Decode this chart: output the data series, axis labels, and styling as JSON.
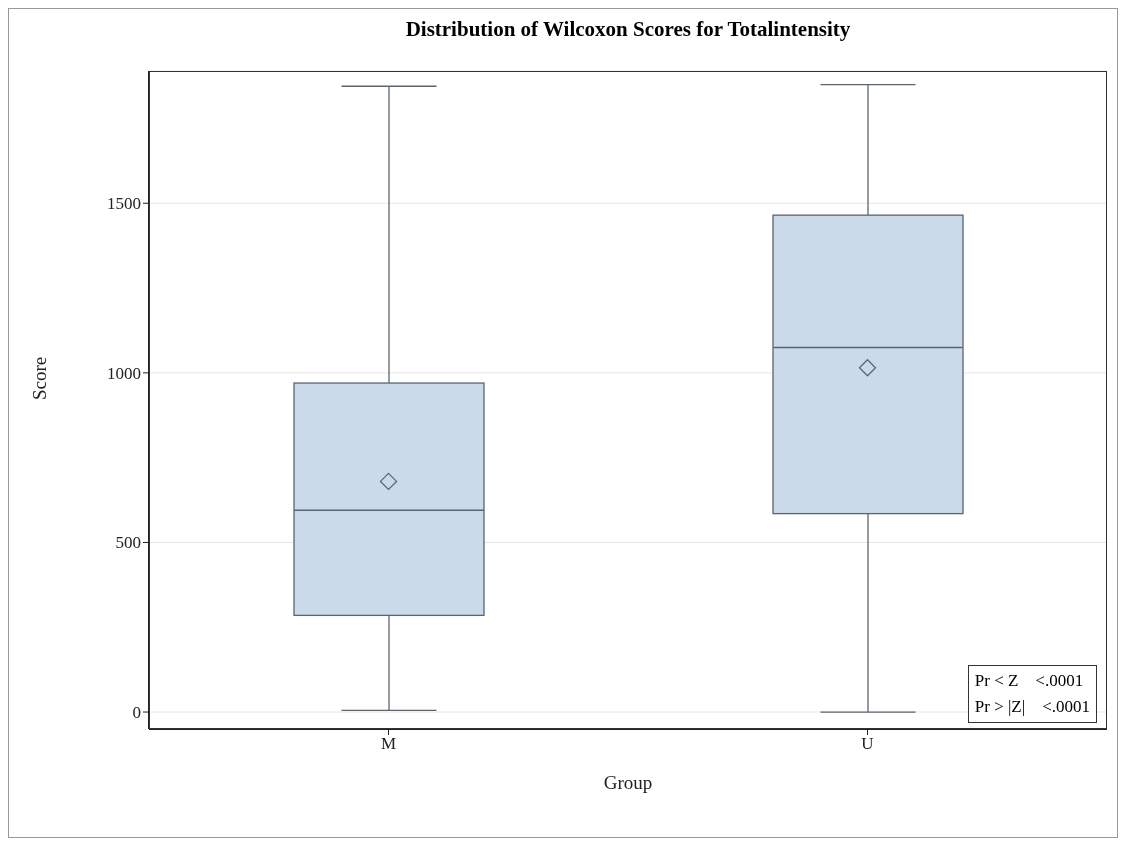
{
  "chart_data": {
    "type": "box",
    "title": "Distribution of Wilcoxon Scores for Totalintensity",
    "xlabel": "Group",
    "ylabel": "Score",
    "categories": [
      "M",
      "U"
    ],
    "series": [
      {
        "color": "#cbdaeb",
        "boxes": [
          {
            "low": 5,
            "q1": 285,
            "median": 595,
            "q3": 970,
            "high": 1845,
            "mean": 680
          },
          {
            "low": 0,
            "q1": 585,
            "median": 1075,
            "q3": 1465,
            "high": 1850,
            "mean": 1015
          }
        ]
      }
    ],
    "ylim": [
      -50,
      1890
    ],
    "yticks": [
      0,
      500,
      1000,
      1500
    ],
    "grid": "y",
    "marker": "diamond",
    "legend": false,
    "annotations": [
      "Pr < Z    <.0001",
      "Pr > |Z|    <.0001"
    ]
  }
}
